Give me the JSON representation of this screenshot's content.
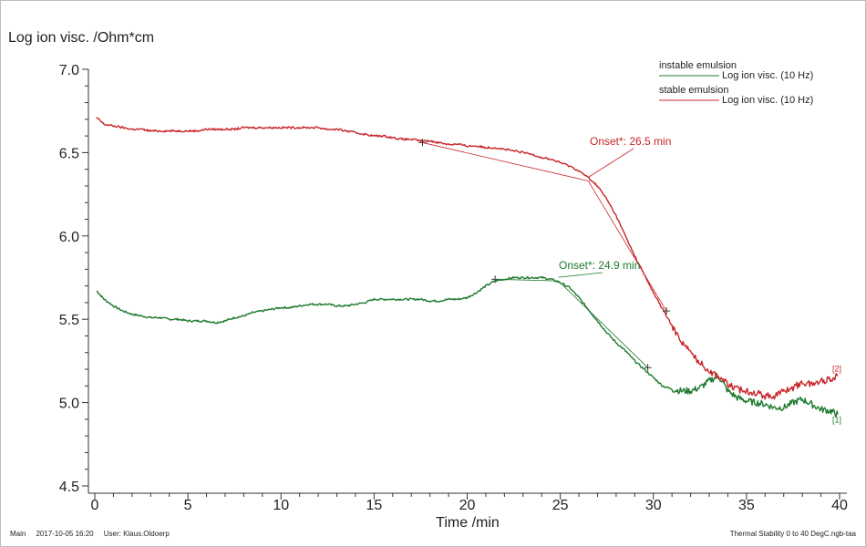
{
  "chart_data": {
    "type": "line",
    "ylabel": "Log ion visc. /Ohm*cm",
    "xlabel": "Time /min",
    "xlim": [
      0,
      40
    ],
    "ylim": [
      4.5,
      7.0
    ],
    "xticks": [
      0,
      5,
      10,
      15,
      20,
      25,
      30,
      35,
      40
    ],
    "yticks": [
      "4.5",
      "5.0",
      "5.5",
      "6.0",
      "6.5",
      "7.0"
    ],
    "grid": false,
    "legend_position": "top-right",
    "series": [
      {
        "name": "instable emulsion",
        "legend_sub": "Log ion visc. (10 Hz)",
        "color": "#1e7a2e",
        "end_tag": "[1]",
        "x": [
          0.1,
          0.5,
          1,
          1.5,
          2,
          2.5,
          3,
          3.5,
          4,
          4.5,
          5,
          5.5,
          6,
          6.5,
          7,
          7.5,
          8,
          8.5,
          9,
          9.5,
          10,
          10.5,
          11,
          11.5,
          12,
          12.5,
          13,
          13.5,
          14,
          14.5,
          15,
          15.5,
          16,
          16.5,
          17,
          17.5,
          18,
          18.5,
          19,
          19.5,
          20,
          20.5,
          21,
          21.5,
          22,
          22.5,
          23,
          23.5,
          24,
          24.5,
          25,
          25.5,
          26,
          26.5,
          27,
          27.5,
          28,
          28.5,
          29,
          29.5,
          30,
          30.5,
          31,
          31.5,
          32,
          32.5,
          33,
          33.5,
          34,
          34.5,
          35,
          35.5,
          36,
          36.5,
          37,
          37.5,
          38,
          38.5,
          39,
          39.5,
          39.9
        ],
        "y": [
          5.67,
          5.62,
          5.58,
          5.55,
          5.53,
          5.52,
          5.51,
          5.51,
          5.5,
          5.5,
          5.49,
          5.49,
          5.49,
          5.48,
          5.49,
          5.51,
          5.52,
          5.54,
          5.55,
          5.56,
          5.57,
          5.57,
          5.58,
          5.59,
          5.59,
          5.59,
          5.58,
          5.58,
          5.59,
          5.6,
          5.62,
          5.62,
          5.62,
          5.62,
          5.62,
          5.62,
          5.61,
          5.61,
          5.62,
          5.62,
          5.63,
          5.66,
          5.7,
          5.73,
          5.74,
          5.75,
          5.75,
          5.75,
          5.75,
          5.74,
          5.72,
          5.69,
          5.63,
          5.56,
          5.49,
          5.42,
          5.36,
          5.31,
          5.25,
          5.2,
          5.15,
          5.1,
          5.08,
          5.07,
          5.07,
          5.09,
          5.13,
          5.16,
          5.07,
          5.03,
          5.01,
          5.0,
          4.99,
          4.97,
          4.97,
          5.0,
          5.02,
          4.99,
          4.96,
          4.95,
          4.93
        ]
      },
      {
        "name": "stable emulsion",
        "legend_sub": "Log ion visc. (10 Hz)",
        "color": "#c8252a",
        "end_tag": "[2]",
        "x": [
          0.1,
          0.5,
          1,
          1.5,
          2,
          2.5,
          3,
          3.5,
          4,
          4.5,
          5,
          5.5,
          6,
          6.5,
          7,
          7.5,
          8,
          8.5,
          9,
          9.5,
          10,
          10.5,
          11,
          11.5,
          12,
          12.5,
          13,
          13.5,
          14,
          14.5,
          15,
          15.5,
          16,
          16.5,
          17,
          17.5,
          18,
          18.5,
          19,
          19.5,
          20,
          20.5,
          21,
          21.5,
          22,
          22.5,
          23,
          23.5,
          24,
          24.5,
          25,
          25.5,
          26,
          26.5,
          27,
          27.5,
          28,
          28.5,
          29,
          29.5,
          30,
          30.5,
          31,
          31.5,
          32,
          32.5,
          33,
          33.5,
          34,
          34.5,
          35,
          35.5,
          36,
          36.5,
          37,
          37.5,
          38,
          38.5,
          39,
          39.5,
          39.9
        ],
        "y": [
          6.71,
          6.67,
          6.66,
          6.65,
          6.64,
          6.64,
          6.63,
          6.63,
          6.63,
          6.63,
          6.63,
          6.63,
          6.64,
          6.64,
          6.64,
          6.64,
          6.65,
          6.65,
          6.65,
          6.65,
          6.65,
          6.65,
          6.65,
          6.65,
          6.65,
          6.64,
          6.64,
          6.63,
          6.62,
          6.61,
          6.6,
          6.6,
          6.59,
          6.58,
          6.58,
          6.57,
          6.57,
          6.56,
          6.55,
          6.55,
          6.54,
          6.54,
          6.53,
          6.53,
          6.52,
          6.51,
          6.5,
          6.49,
          6.47,
          6.46,
          6.44,
          6.42,
          6.39,
          6.35,
          6.3,
          6.22,
          6.12,
          6.0,
          5.88,
          5.77,
          5.66,
          5.56,
          5.46,
          5.37,
          5.3,
          5.24,
          5.19,
          5.16,
          5.11,
          5.08,
          5.07,
          5.06,
          5.04,
          5.04,
          5.07,
          5.09,
          5.12,
          5.11,
          5.13,
          5.14,
          5.16
        ]
      }
    ],
    "annotations": [
      {
        "label": "Onset*: 26.5 min",
        "color": "#c8252a",
        "series": 1,
        "tangent_points": [
          [
            17.6,
            6.56
          ],
          [
            30.7,
            5.55
          ]
        ],
        "onset": [
          26.5,
          6.33
        ]
      },
      {
        "label": "Onset*: 24.9 min",
        "color": "#1e7a2e",
        "series": 0,
        "tangent_points": [
          [
            21.5,
            5.74
          ],
          [
            29.7,
            5.21
          ]
        ],
        "onset": [
          24.9,
          5.73
        ]
      }
    ]
  },
  "footer": {
    "left": "Main     2017-10-05 16:20     User: Klaus.Oldoerp",
    "right": "Thermal Stability 0 to 40 DegC.ngb-taa"
  }
}
